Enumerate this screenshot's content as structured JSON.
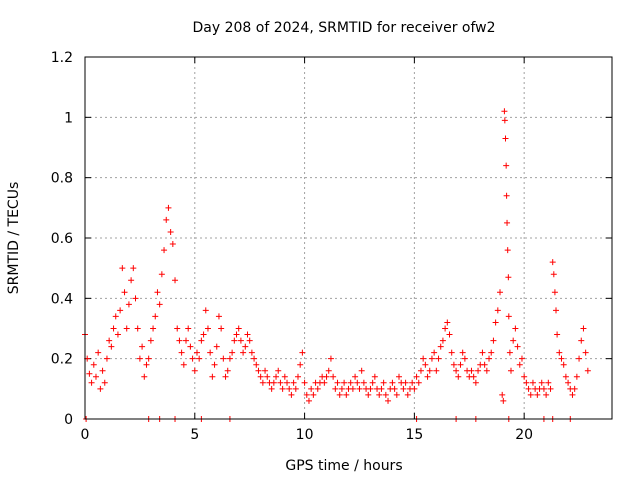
{
  "chart_data": {
    "type": "scatter",
    "title": "Day 208 of 2024, SRMTID for receiver ofw2",
    "xlabel": "GPS time / hours",
    "ylabel": "SRMTID / TECUs",
    "xlim": [
      0,
      24
    ],
    "ylim": [
      0,
      1.2
    ],
    "x_ticks": [
      0,
      5,
      10,
      15,
      20
    ],
    "x_tick_labels": [
      "0",
      "5",
      "10",
      "15",
      "20"
    ],
    "y_ticks": [
      0,
      0.2,
      0.4,
      0.6,
      0.8,
      1,
      1.2
    ],
    "y_tick_labels": [
      "0",
      "0.2",
      "0.4",
      "0.6",
      "0.8",
      "1",
      "1.2"
    ],
    "grid": true,
    "marker": "+",
    "color": "#ff0000",
    "series": [
      {
        "name": "SRMTID",
        "points": [
          [
            0.0,
            0.28
          ],
          [
            0.1,
            0.2
          ],
          [
            0.2,
            0.15
          ],
          [
            0.3,
            0.12
          ],
          [
            0.4,
            0.18
          ],
          [
            0.5,
            0.14
          ],
          [
            0.6,
            0.22
          ],
          [
            0.7,
            0.1
          ],
          [
            0.8,
            0.16
          ],
          [
            0.9,
            0.12
          ],
          [
            1.0,
            0.2
          ],
          [
            1.1,
            0.26
          ],
          [
            1.2,
            0.24
          ],
          [
            1.3,
            0.3
          ],
          [
            1.4,
            0.34
          ],
          [
            1.5,
            0.28
          ],
          [
            1.6,
            0.36
          ],
          [
            1.7,
            0.5
          ],
          [
            1.8,
            0.42
          ],
          [
            1.9,
            0.3
          ],
          [
            2.0,
            0.38
          ],
          [
            2.1,
            0.46
          ],
          [
            2.2,
            0.5
          ],
          [
            2.3,
            0.4
          ],
          [
            2.4,
            0.3
          ],
          [
            2.5,
            0.2
          ],
          [
            2.6,
            0.24
          ],
          [
            2.7,
            0.14
          ],
          [
            2.8,
            0.18
          ],
          [
            2.9,
            0.2
          ],
          [
            3.0,
            0.26
          ],
          [
            3.1,
            0.3
          ],
          [
            3.2,
            0.34
          ],
          [
            3.3,
            0.42
          ],
          [
            3.4,
            0.38
          ],
          [
            3.5,
            0.48
          ],
          [
            3.6,
            0.56
          ],
          [
            3.7,
            0.66
          ],
          [
            3.8,
            0.7
          ],
          [
            3.9,
            0.62
          ],
          [
            4.0,
            0.58
          ],
          [
            4.1,
            0.46
          ],
          [
            4.2,
            0.3
          ],
          [
            4.3,
            0.26
          ],
          [
            4.4,
            0.22
          ],
          [
            4.5,
            0.18
          ],
          [
            4.6,
            0.26
          ],
          [
            4.7,
            0.3
          ],
          [
            4.8,
            0.24
          ],
          [
            4.9,
            0.2
          ],
          [
            5.0,
            0.16
          ],
          [
            5.1,
            0.22
          ],
          [
            5.2,
            0.2
          ],
          [
            5.3,
            0.26
          ],
          [
            5.4,
            0.28
          ],
          [
            5.5,
            0.36
          ],
          [
            5.6,
            0.3
          ],
          [
            5.7,
            0.22
          ],
          [
            5.8,
            0.14
          ],
          [
            5.9,
            0.18
          ],
          [
            6.0,
            0.24
          ],
          [
            6.1,
            0.34
          ],
          [
            6.2,
            0.3
          ],
          [
            6.3,
            0.2
          ],
          [
            6.4,
            0.14
          ],
          [
            6.5,
            0.16
          ],
          [
            6.6,
            0.2
          ],
          [
            6.7,
            0.22
          ],
          [
            6.8,
            0.26
          ],
          [
            6.9,
            0.28
          ],
          [
            7.0,
            0.3
          ],
          [
            7.1,
            0.26
          ],
          [
            7.2,
            0.22
          ],
          [
            7.3,
            0.24
          ],
          [
            7.4,
            0.28
          ],
          [
            7.5,
            0.26
          ],
          [
            7.6,
            0.22
          ],
          [
            7.7,
            0.2
          ],
          [
            7.8,
            0.18
          ],
          [
            7.9,
            0.16
          ],
          [
            8.0,
            0.14
          ],
          [
            8.1,
            0.12
          ],
          [
            8.2,
            0.16
          ],
          [
            8.3,
            0.14
          ],
          [
            8.4,
            0.12
          ],
          [
            8.5,
            0.1
          ],
          [
            8.6,
            0.12
          ],
          [
            8.7,
            0.14
          ],
          [
            8.8,
            0.16
          ],
          [
            8.9,
            0.12
          ],
          [
            9.0,
            0.1
          ],
          [
            9.1,
            0.14
          ],
          [
            9.2,
            0.12
          ],
          [
            9.3,
            0.1
          ],
          [
            9.4,
            0.08
          ],
          [
            9.5,
            0.12
          ],
          [
            9.6,
            0.1
          ],
          [
            9.7,
            0.14
          ],
          [
            9.8,
            0.18
          ],
          [
            9.9,
            0.22
          ],
          [
            10.0,
            0.12
          ],
          [
            10.1,
            0.08
          ],
          [
            10.2,
            0.06
          ],
          [
            10.3,
            0.1
          ],
          [
            10.4,
            0.08
          ],
          [
            10.5,
            0.12
          ],
          [
            10.6,
            0.1
          ],
          [
            10.7,
            0.12
          ],
          [
            10.8,
            0.14
          ],
          [
            10.9,
            0.12
          ],
          [
            11.0,
            0.14
          ],
          [
            11.1,
            0.16
          ],
          [
            11.2,
            0.2
          ],
          [
            11.3,
            0.14
          ],
          [
            11.4,
            0.1
          ],
          [
            11.5,
            0.12
          ],
          [
            11.6,
            0.08
          ],
          [
            11.7,
            0.1
          ],
          [
            11.8,
            0.12
          ],
          [
            11.9,
            0.08
          ],
          [
            12.0,
            0.1
          ],
          [
            12.1,
            0.12
          ],
          [
            12.2,
            0.1
          ],
          [
            12.3,
            0.14
          ],
          [
            12.4,
            0.12
          ],
          [
            12.5,
            0.1
          ],
          [
            12.6,
            0.16
          ],
          [
            12.7,
            0.12
          ],
          [
            12.8,
            0.1
          ],
          [
            12.9,
            0.08
          ],
          [
            13.0,
            0.1
          ],
          [
            13.1,
            0.12
          ],
          [
            13.2,
            0.14
          ],
          [
            13.3,
            0.1
          ],
          [
            13.4,
            0.08
          ],
          [
            13.5,
            0.1
          ],
          [
            13.6,
            0.12
          ],
          [
            13.7,
            0.08
          ],
          [
            13.8,
            0.06
          ],
          [
            13.9,
            0.1
          ],
          [
            14.0,
            0.12
          ],
          [
            14.1,
            0.1
          ],
          [
            14.2,
            0.08
          ],
          [
            14.3,
            0.14
          ],
          [
            14.4,
            0.12
          ],
          [
            14.5,
            0.1
          ],
          [
            14.6,
            0.12
          ],
          [
            14.7,
            0.08
          ],
          [
            14.8,
            0.1
          ],
          [
            14.9,
            0.12
          ],
          [
            15.0,
            0.1
          ],
          [
            15.1,
            0.14
          ],
          [
            15.2,
            0.12
          ],
          [
            15.3,
            0.16
          ],
          [
            15.4,
            0.2
          ],
          [
            15.5,
            0.18
          ],
          [
            15.6,
            0.14
          ],
          [
            15.7,
            0.16
          ],
          [
            15.8,
            0.2
          ],
          [
            15.9,
            0.22
          ],
          [
            16.0,
            0.16
          ],
          [
            16.1,
            0.2
          ],
          [
            16.2,
            0.24
          ],
          [
            16.3,
            0.26
          ],
          [
            16.4,
            0.3
          ],
          [
            16.5,
            0.32
          ],
          [
            16.6,
            0.28
          ],
          [
            16.7,
            0.22
          ],
          [
            16.8,
            0.18
          ],
          [
            16.9,
            0.16
          ],
          [
            17.0,
            0.14
          ],
          [
            17.1,
            0.18
          ],
          [
            17.2,
            0.22
          ],
          [
            17.3,
            0.2
          ],
          [
            17.4,
            0.16
          ],
          [
            17.5,
            0.14
          ],
          [
            17.6,
            0.16
          ],
          [
            17.7,
            0.14
          ],
          [
            17.8,
            0.12
          ],
          [
            17.9,
            0.16
          ],
          [
            18.0,
            0.18
          ],
          [
            18.1,
            0.22
          ],
          [
            18.2,
            0.18
          ],
          [
            18.3,
            0.16
          ],
          [
            18.4,
            0.2
          ],
          [
            18.5,
            0.22
          ],
          [
            18.6,
            0.26
          ],
          [
            18.7,
            0.32
          ],
          [
            18.8,
            0.36
          ],
          [
            18.9,
            0.42
          ],
          [
            19.0,
            0.08
          ],
          [
            19.05,
            0.06
          ],
          [
            19.1,
            1.02
          ],
          [
            19.12,
            0.99
          ],
          [
            19.15,
            0.93
          ],
          [
            19.18,
            0.84
          ],
          [
            19.2,
            0.74
          ],
          [
            19.22,
            0.65
          ],
          [
            19.25,
            0.56
          ],
          [
            19.28,
            0.47
          ],
          [
            19.3,
            0.34
          ],
          [
            19.35,
            0.22
          ],
          [
            19.4,
            0.16
          ],
          [
            19.5,
            0.26
          ],
          [
            19.6,
            0.3
          ],
          [
            19.7,
            0.24
          ],
          [
            19.8,
            0.18
          ],
          [
            19.9,
            0.2
          ],
          [
            20.0,
            0.14
          ],
          [
            20.1,
            0.12
          ],
          [
            20.2,
            0.1
          ],
          [
            20.3,
            0.08
          ],
          [
            20.4,
            0.12
          ],
          [
            20.5,
            0.1
          ],
          [
            20.6,
            0.08
          ],
          [
            20.7,
            0.1
          ],
          [
            20.8,
            0.12
          ],
          [
            20.9,
            0.1
          ],
          [
            21.0,
            0.08
          ],
          [
            21.1,
            0.12
          ],
          [
            21.2,
            0.1
          ],
          [
            21.3,
            0.52
          ],
          [
            21.35,
            0.48
          ],
          [
            21.4,
            0.42
          ],
          [
            21.45,
            0.36
          ],
          [
            21.5,
            0.28
          ],
          [
            21.6,
            0.22
          ],
          [
            21.7,
            0.2
          ],
          [
            21.8,
            0.18
          ],
          [
            21.9,
            0.14
          ],
          [
            22.0,
            0.12
          ],
          [
            22.1,
            0.1
          ],
          [
            22.2,
            0.08
          ],
          [
            22.3,
            0.1
          ],
          [
            22.4,
            0.14
          ],
          [
            22.5,
            0.2
          ],
          [
            22.6,
            0.26
          ],
          [
            22.7,
            0.3
          ],
          [
            22.8,
            0.22
          ],
          [
            22.9,
            0.16
          ]
        ]
      }
    ],
    "baseline_points_x": [
      0.05,
      2.9,
      3.4,
      4.1,
      5.3,
      6.6,
      15.1,
      16.9,
      17.8,
      19.3,
      20.9,
      21.3,
      22.1
    ]
  }
}
